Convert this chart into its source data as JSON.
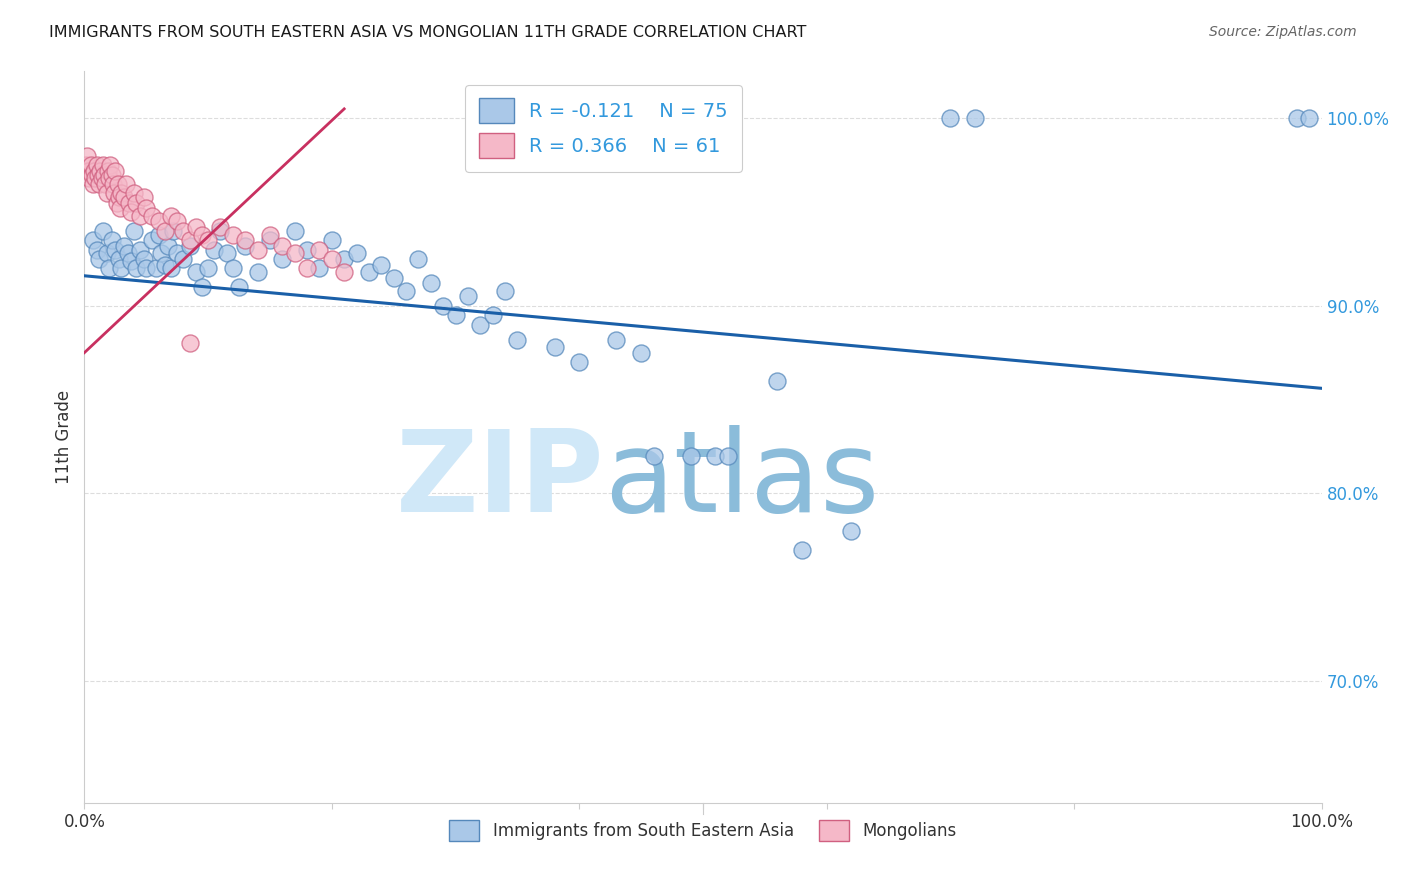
{
  "title": "IMMIGRANTS FROM SOUTH EASTERN ASIA VS MONGOLIAN 11TH GRADE CORRELATION CHART",
  "source": "Source: ZipAtlas.com",
  "ylabel": "11th Grade",
  "y_tick_labels": [
    "100.0%",
    "90.0%",
    "80.0%",
    "70.0%"
  ],
  "y_tick_values": [
    1.0,
    0.9,
    0.8,
    0.7
  ],
  "xlim": [
    0.0,
    1.0
  ],
  "ylim": [
    0.635,
    1.025
  ],
  "legend_r1": "R = -0.121",
  "legend_n1": "N = 75",
  "legend_r2": "R = 0.366",
  "legend_n2": "N = 61",
  "blue_color": "#aac8e8",
  "blue_edge_color": "#5588bb",
  "blue_line_color": "#1a5fa8",
  "pink_color": "#f5b8c8",
  "pink_edge_color": "#d06080",
  "pink_line_color": "#c83060",
  "title_color": "#1a1a1a",
  "source_color": "#666666",
  "watermark_zip_color": "#c8dff5",
  "watermark_atlas_color": "#88b8d8",
  "axis_color": "#cccccc",
  "grid_color": "#dddddd",
  "blue_scatter_x": [
    0.007,
    0.01,
    0.012,
    0.015,
    0.018,
    0.02,
    0.022,
    0.025,
    0.028,
    0.03,
    0.032,
    0.035,
    0.038,
    0.04,
    0.042,
    0.045,
    0.048,
    0.05,
    0.055,
    0.058,
    0.06,
    0.062,
    0.065,
    0.068,
    0.07,
    0.072,
    0.075,
    0.08,
    0.085,
    0.09,
    0.095,
    0.1,
    0.105,
    0.11,
    0.115,
    0.12,
    0.125,
    0.13,
    0.14,
    0.15,
    0.16,
    0.17,
    0.18,
    0.19,
    0.2,
    0.21,
    0.22,
    0.23,
    0.24,
    0.25,
    0.26,
    0.27,
    0.28,
    0.29,
    0.3,
    0.31,
    0.32,
    0.33,
    0.34,
    0.35,
    0.38,
    0.4,
    0.43,
    0.45,
    0.46,
    0.49,
    0.51,
    0.56,
    0.62,
    0.7,
    0.72,
    0.98,
    0.99,
    0.52,
    0.58
  ],
  "blue_scatter_y": [
    0.935,
    0.93,
    0.925,
    0.94,
    0.928,
    0.92,
    0.935,
    0.93,
    0.925,
    0.92,
    0.932,
    0.928,
    0.924,
    0.94,
    0.92,
    0.93,
    0.925,
    0.92,
    0.935,
    0.92,
    0.938,
    0.928,
    0.922,
    0.932,
    0.92,
    0.94,
    0.928,
    0.925,
    0.932,
    0.918,
    0.91,
    0.92,
    0.93,
    0.94,
    0.928,
    0.92,
    0.91,
    0.932,
    0.918,
    0.935,
    0.925,
    0.94,
    0.93,
    0.92,
    0.935,
    0.925,
    0.928,
    0.918,
    0.922,
    0.915,
    0.908,
    0.925,
    0.912,
    0.9,
    0.895,
    0.905,
    0.89,
    0.895,
    0.908,
    0.882,
    0.878,
    0.87,
    0.882,
    0.875,
    0.82,
    0.82,
    0.82,
    0.86,
    0.78,
    1.0,
    1.0,
    1.0,
    1.0,
    0.82,
    0.77
  ],
  "pink_scatter_x": [
    0.001,
    0.002,
    0.003,
    0.004,
    0.005,
    0.006,
    0.007,
    0.008,
    0.009,
    0.01,
    0.011,
    0.012,
    0.013,
    0.014,
    0.015,
    0.016,
    0.017,
    0.018,
    0.019,
    0.02,
    0.021,
    0.022,
    0.023,
    0.024,
    0.025,
    0.026,
    0.027,
    0.028,
    0.029,
    0.03,
    0.032,
    0.034,
    0.036,
    0.038,
    0.04,
    0.042,
    0.045,
    0.048,
    0.05,
    0.055,
    0.06,
    0.065,
    0.07,
    0.075,
    0.08,
    0.085,
    0.09,
    0.095,
    0.1,
    0.11,
    0.12,
    0.13,
    0.14,
    0.15,
    0.16,
    0.17,
    0.18,
    0.19,
    0.2,
    0.21,
    0.085
  ],
  "pink_scatter_y": [
    0.975,
    0.98,
    0.972,
    0.968,
    0.975,
    0.97,
    0.965,
    0.972,
    0.968,
    0.975,
    0.97,
    0.965,
    0.972,
    0.968,
    0.975,
    0.97,
    0.965,
    0.96,
    0.972,
    0.968,
    0.975,
    0.97,
    0.965,
    0.96,
    0.972,
    0.955,
    0.965,
    0.958,
    0.952,
    0.96,
    0.958,
    0.965,
    0.955,
    0.95,
    0.96,
    0.955,
    0.948,
    0.958,
    0.952,
    0.948,
    0.945,
    0.94,
    0.948,
    0.945,
    0.94,
    0.935,
    0.942,
    0.938,
    0.935,
    0.942,
    0.938,
    0.935,
    0.93,
    0.938,
    0.932,
    0.928,
    0.92,
    0.93,
    0.925,
    0.918,
    0.88
  ],
  "blue_line_x0": 0.0,
  "blue_line_x1": 1.0,
  "blue_line_y0": 0.916,
  "blue_line_y1": 0.856,
  "pink_line_x0": 0.0,
  "pink_line_x1": 0.21,
  "pink_line_y0": 0.875,
  "pink_line_y1": 1.005
}
